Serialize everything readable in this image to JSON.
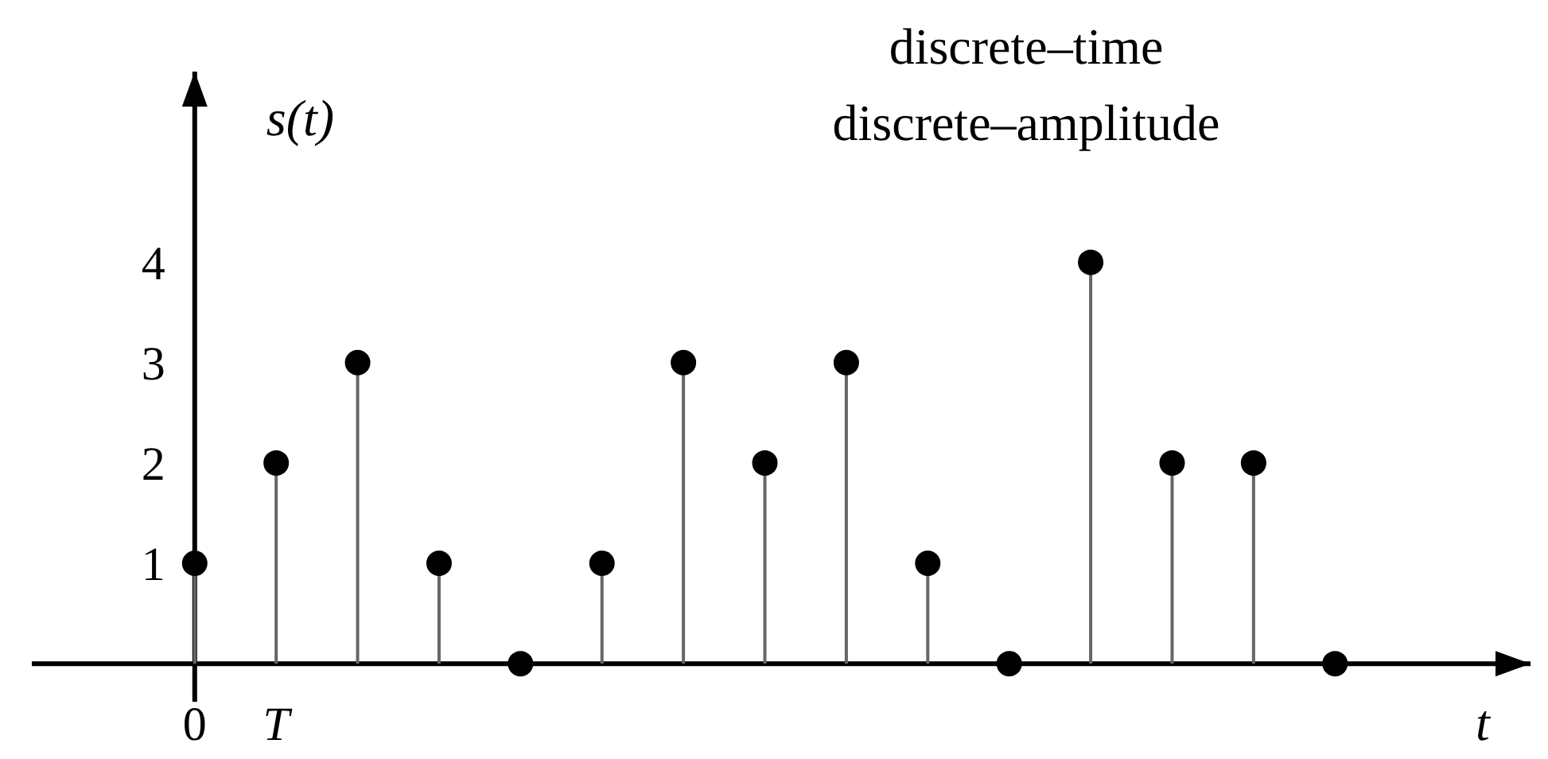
{
  "chart_data": {
    "type": "lollipop",
    "title": "discrete–time",
    "subtitle": "discrete–amplitude",
    "xlabel": "t",
    "ylabel": "s(t)",
    "categories": [
      "0",
      "T",
      null,
      null,
      null,
      null,
      null,
      null,
      null,
      null,
      null,
      null,
      null,
      null,
      null
    ],
    "series": [
      {
        "color": "#000000",
        "values": [
          1,
          2,
          3,
          1,
          0,
          1,
          3,
          2,
          3,
          1,
          0,
          4,
          2,
          2,
          0
        ]
      }
    ],
    "ylim": [
      -0.76,
      5.9
    ],
    "yticks": [
      1,
      2,
      3,
      4
    ],
    "marker": "circle",
    "grid": false
  }
}
